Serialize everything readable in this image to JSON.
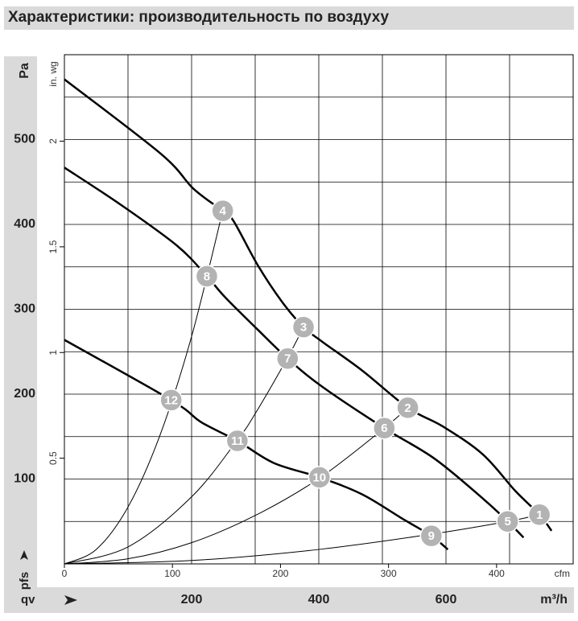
{
  "chart_data": {
    "type": "line",
    "title": "Характеристики: производительность по воздуху",
    "x_label": "qv",
    "x_unit": "m³/h",
    "y_label": "pfs",
    "y_unit": "Pa",
    "x2_unit": "cfm",
    "y2_unit": "in. wg",
    "xlim": [
      0,
      800
    ],
    "xticks": [
      200,
      400,
      600
    ],
    "xminor": [
      100,
      300,
      500,
      700
    ],
    "ylim": [
      0,
      600
    ],
    "yticks": [
      100,
      200,
      300,
      400,
      500
    ],
    "yminor": [
      50,
      150,
      250,
      350,
      450,
      550
    ],
    "x2lim": [
      0,
      470.9
    ],
    "x2ticks": [
      0,
      100,
      200,
      300,
      400
    ],
    "y2lim": [
      0,
      2.409
    ],
    "y2ticks": [
      0.5,
      1,
      1.5,
      2
    ],
    "grid": true,
    "series": [
      {
        "color": "#000000",
        "width": 2.5,
        "x": [
          0,
          152,
          203,
          249,
          266,
          304,
          342,
          376,
          405,
          468,
          540,
          595,
          658,
          709,
          747,
          766
        ],
        "values": [
          571,
          483,
          442,
          416,
          404,
          352,
          309,
          279,
          262,
          228,
          184,
          162,
          129,
          86,
          58,
          39
        ]
      },
      {
        "color": "#000000",
        "width": 2.5,
        "x": [
          0,
          89,
          177,
          224,
          253,
          304,
          351,
          405,
          503,
          582,
          658,
          697,
          722
        ],
        "values": [
          467,
          423,
          375,
          339,
          314,
          276,
          242,
          209,
          160,
          124,
          77,
          50,
          31
        ]
      },
      {
        "color": "#000000",
        "width": 2.5,
        "x": [
          0,
          168,
          215,
          272,
          329,
          401,
          468,
          532,
          577,
          603
        ],
        "values": [
          264,
          193,
          167,
          145,
          119,
          102,
          82,
          53,
          33,
          17
        ]
      },
      {
        "color": "#000000",
        "width": 1,
        "x": [
          0,
          50,
          100,
          150,
          200,
          249
        ],
        "values": [
          0,
          17,
          67,
          151,
          268,
          416
        ]
      },
      {
        "color": "#000000",
        "width": 1,
        "x": [
          0,
          100,
          200,
          272,
          300,
          351,
          376
        ],
        "values": [
          0,
          20,
          79,
          146,
          177,
          243,
          279
        ]
      },
      {
        "color": "#000000",
        "width": 1,
        "x": [
          0,
          100,
          200,
          300,
          401,
          503,
          540
        ],
        "values": [
          0,
          6,
          25,
          57,
          101,
          160,
          184
        ]
      },
      {
        "color": "#000000",
        "width": 1,
        "x": [
          0,
          200,
          400,
          577,
          697,
          747
        ],
        "values": [
          0,
          4,
          17,
          35,
          50,
          58
        ]
      }
    ],
    "operating_points": {
      "color": "#b3b3b3",
      "labels": [
        "1",
        "2",
        "3",
        "4",
        "5",
        "6",
        "7",
        "8",
        "9",
        "10",
        "11",
        "12"
      ],
      "x": [
        747,
        540,
        376,
        249,
        697,
        503,
        351,
        224,
        577,
        401,
        272,
        168
      ],
      "values": [
        58,
        184,
        279,
        416,
        50,
        160,
        242,
        339,
        33,
        102,
        145,
        193
      ]
    }
  }
}
